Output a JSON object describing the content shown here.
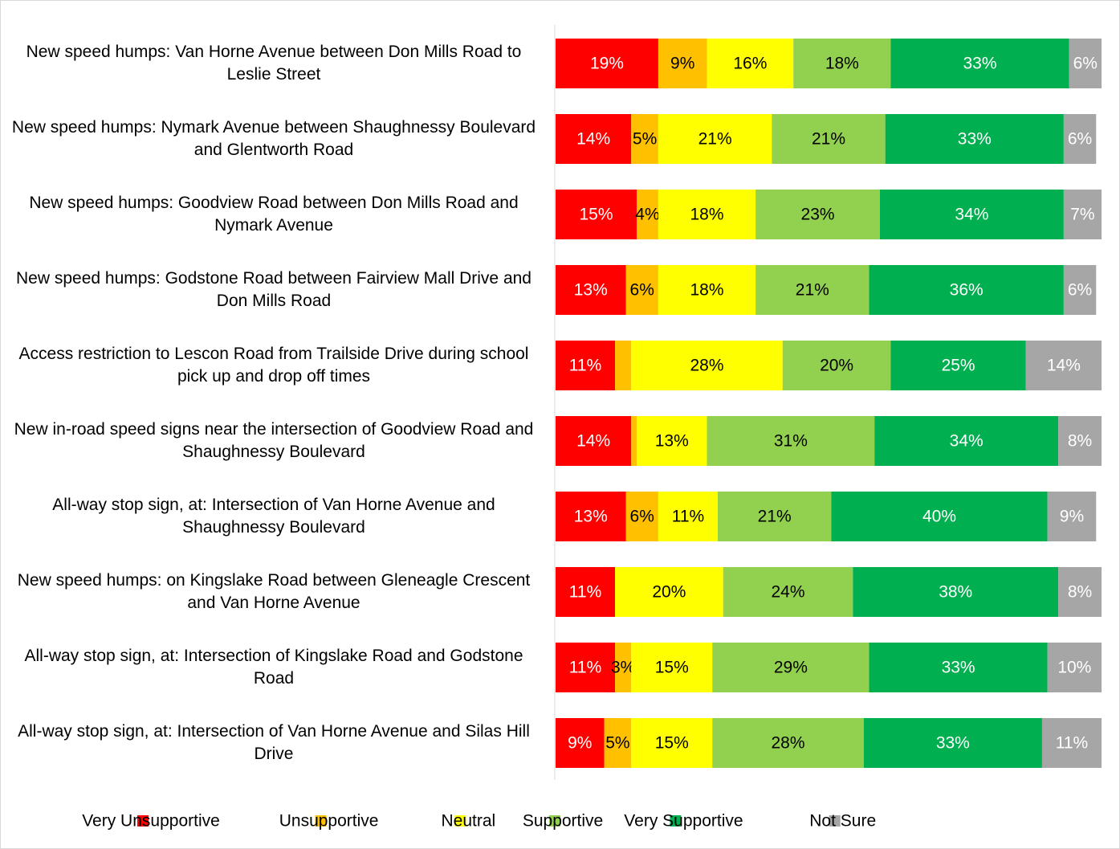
{
  "chart_data": {
    "type": "stacked_bar_horizontal",
    "categories": [
      "New speed humps: Van Horne Avenue between Don Mills Road to Leslie Street",
      "New speed humps: Nymark Avenue between Shaughnessy Boulevard and Glentworth Road",
      "New speed humps: Goodview Road between Don Mills Road and Nymark Avenue",
      "New speed humps: Godstone Road between Fairview Mall Drive and Don Mills Road",
      "Access restriction to Lescon Road from Trailside Drive during school pick up and drop off times",
      "New in-road speed signs near the intersection of Goodview Road and Shaughnessy Boulevard",
      "All-way stop sign, at: Intersection of Van Horne Avenue and Shaughnessy Boulevard",
      "New speed humps: on Kingslake Road between Gleneagle Crescent and Van Horne Avenue",
      "All-way stop sign, at: Intersection of Kingslake Road and Godstone Road",
      "All-way stop sign, at: Intersection of Van Horne Avenue and Silas Hill Drive"
    ],
    "series": [
      {
        "name": "Very Unsupportive",
        "color": "#ff0000",
        "label_color": "#ffffff",
        "values": [
          19,
          14,
          15,
          13,
          11,
          14,
          13,
          11,
          11,
          9
        ],
        "value_labels": [
          "19%",
          "14%",
          "15%",
          "13%",
          "11%",
          "14%",
          "13%",
          "11%",
          "11%",
          "9%"
        ]
      },
      {
        "name": "Unsupportive",
        "color": "#ffc000",
        "label_color": "#000000",
        "values": [
          9,
          5,
          4,
          6,
          3,
          1,
          6,
          0,
          3,
          5
        ],
        "value_labels": [
          "9%",
          "5%",
          "4%",
          "6%",
          null,
          null,
          "6%",
          null,
          "3%",
          "5%"
        ]
      },
      {
        "name": "Neutral",
        "color": "#ffff00",
        "label_color": "#000000",
        "values": [
          16,
          21,
          18,
          18,
          28,
          13,
          11,
          20,
          15,
          15
        ],
        "value_labels": [
          "16%",
          "21%",
          "18%",
          "18%",
          "28%",
          "13%",
          "11%",
          "20%",
          "15%",
          "15%"
        ]
      },
      {
        "name": "Supportive",
        "color": "#92d050",
        "label_color": "#000000",
        "values": [
          18,
          21,
          23,
          21,
          20,
          31,
          21,
          24,
          29,
          28
        ],
        "value_labels": [
          "18%",
          "21%",
          "23%",
          "21%",
          "20%",
          "31%",
          "21%",
          "24%",
          "29%",
          "28%"
        ]
      },
      {
        "name": "Very Supportive",
        "color": "#00b050",
        "label_color": "#ffffff",
        "values": [
          33,
          33,
          34,
          36,
          25,
          34,
          40,
          38,
          33,
          33
        ],
        "value_labels": [
          "33%",
          "33%",
          "34%",
          "36%",
          "25%",
          "34%",
          "40%",
          "38%",
          "33%",
          "33%"
        ]
      },
      {
        "name": "Not Sure",
        "color": "#a6a6a6",
        "label_color": "#ffffff",
        "values": [
          6,
          6,
          7,
          6,
          14,
          8,
          9,
          8,
          10,
          11
        ],
        "value_labels": [
          "6%",
          "6%",
          "7%",
          "6%",
          "14%",
          "8%",
          "9%",
          "8%",
          "10%",
          "11%"
        ]
      }
    ],
    "legend": "bottom"
  }
}
